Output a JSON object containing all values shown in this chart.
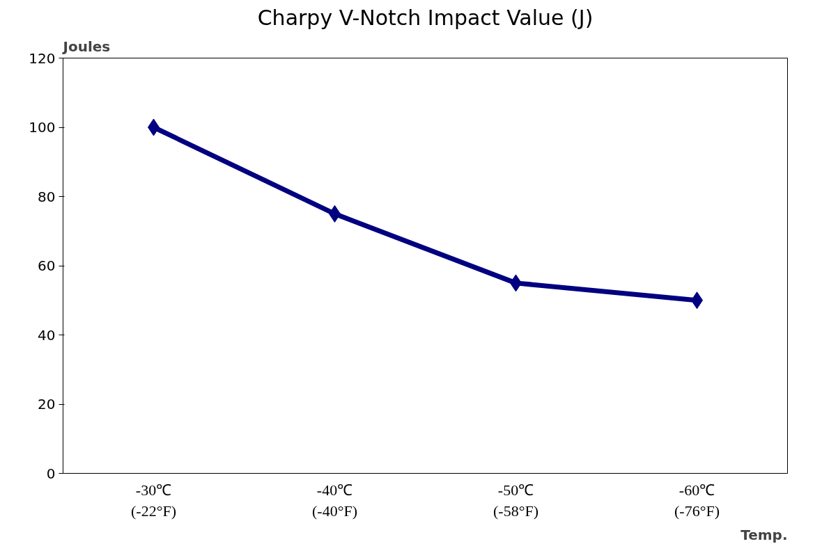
{
  "chart_data": {
    "type": "line",
    "title": "Charpy V-Notch Impact Value (J)",
    "ylabel": "Joules",
    "xlabel": "Temp.",
    "categories": [
      "-30℃\n(-22°F)",
      "-40℃\n(-40°F)",
      "-50℃\n(-58°F)",
      "-60℃\n(-76°F)"
    ],
    "series": [
      {
        "color": "#000080",
        "values": [
          100,
          75,
          55,
          50
        ]
      }
    ],
    "ylim": [
      0,
      120
    ],
    "yticks": [
      0,
      20,
      40,
      60,
      80,
      100,
      120
    ],
    "grid": false,
    "marker": "diamond",
    "line_style": "solid"
  }
}
